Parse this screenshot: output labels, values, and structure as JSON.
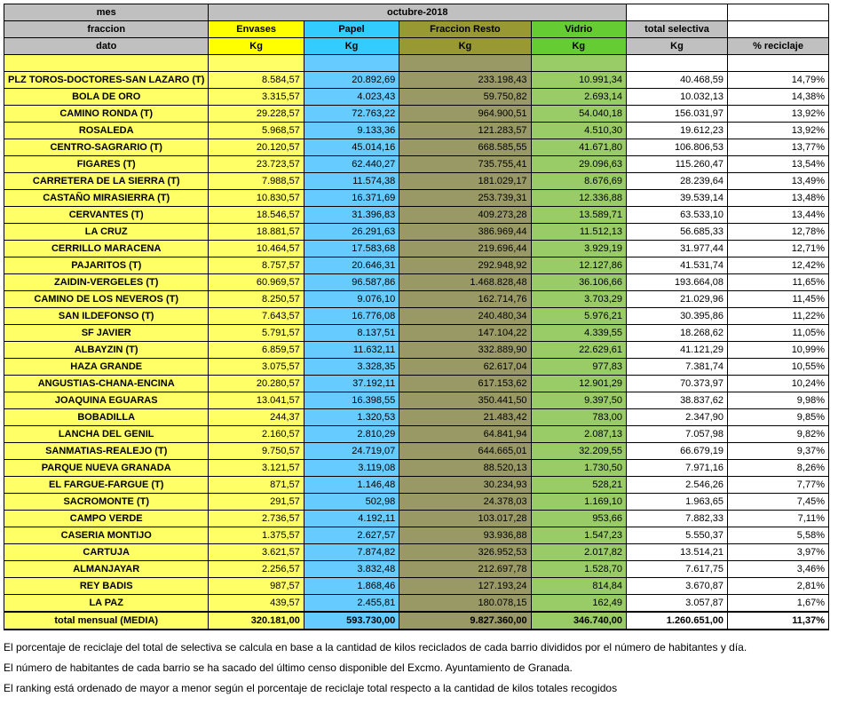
{
  "headers": {
    "mes": "mes",
    "period": "octubre-2018",
    "fraccion": "fraccion",
    "c1": "Envases",
    "c2": "Papel",
    "c3": "Fraccion Resto",
    "c4": "Vidrio",
    "c5": "total selectiva",
    "dato": "dato",
    "kg": "Kg",
    "pct": "% reciclaje"
  },
  "rows": [
    {
      "n": "PLZ TOROS-DOCTORES-SAN LAZARO (T)",
      "e": "8.584,57",
      "p": "20.892,69",
      "r": "233.198,43",
      "v": "10.991,34",
      "t": "40.468,59",
      "pc": "14,79%"
    },
    {
      "n": "BOLA DE ORO",
      "e": "3.315,57",
      "p": "4.023,43",
      "r": "59.750,82",
      "v": "2.693,14",
      "t": "10.032,13",
      "pc": "14,38%"
    },
    {
      "n": "CAMINO RONDA (T)",
      "e": "29.228,57",
      "p": "72.763,22",
      "r": "964.900,51",
      "v": "54.040,18",
      "t": "156.031,97",
      "pc": "13,92%"
    },
    {
      "n": "ROSALEDA",
      "e": "5.968,57",
      "p": "9.133,36",
      "r": "121.283,57",
      "v": "4.510,30",
      "t": "19.612,23",
      "pc": "13,92%"
    },
    {
      "n": "CENTRO-SAGRARIO (T)",
      "e": "20.120,57",
      "p": "45.014,16",
      "r": "668.585,55",
      "v": "41.671,80",
      "t": "106.806,53",
      "pc": "13,77%"
    },
    {
      "n": "FIGARES (T)",
      "e": "23.723,57",
      "p": "62.440,27",
      "r": "735.755,41",
      "v": "29.096,63",
      "t": "115.260,47",
      "pc": "13,54%"
    },
    {
      "n": "CARRETERA DE LA SIERRA (T)",
      "e": "7.988,57",
      "p": "11.574,38",
      "r": "181.029,17",
      "v": "8.676,69",
      "t": "28.239,64",
      "pc": "13,49%"
    },
    {
      "n": "CASTAÑO MIRASIERRA (T)",
      "e": "10.830,57",
      "p": "16.371,69",
      "r": "253.739,31",
      "v": "12.336,88",
      "t": "39.539,14",
      "pc": "13,48%"
    },
    {
      "n": "CERVANTES (T)",
      "e": "18.546,57",
      "p": "31.396,83",
      "r": "409.273,28",
      "v": "13.589,71",
      "t": "63.533,10",
      "pc": "13,44%"
    },
    {
      "n": "LA CRUZ",
      "e": "18.881,57",
      "p": "26.291,63",
      "r": "386.969,44",
      "v": "11.512,13",
      "t": "56.685,33",
      "pc": "12,78%"
    },
    {
      "n": "CERRILLO MARACENA",
      "e": "10.464,57",
      "p": "17.583,68",
      "r": "219.696,44",
      "v": "3.929,19",
      "t": "31.977,44",
      "pc": "12,71%"
    },
    {
      "n": "PAJARITOS (T)",
      "e": "8.757,57",
      "p": "20.646,31",
      "r": "292.948,92",
      "v": "12.127,86",
      "t": "41.531,74",
      "pc": "12,42%"
    },
    {
      "n": "ZAIDIN-VERGELES (T)",
      "e": "60.969,57",
      "p": "96.587,86",
      "r": "1.468.828,48",
      "v": "36.106,66",
      "t": "193.664,08",
      "pc": "11,65%"
    },
    {
      "n": "CAMINO DE LOS NEVEROS (T)",
      "e": "8.250,57",
      "p": "9.076,10",
      "r": "162.714,76",
      "v": "3.703,29",
      "t": "21.029,96",
      "pc": "11,45%"
    },
    {
      "n": "SAN ILDEFONSO (T)",
      "e": "7.643,57",
      "p": "16.776,08",
      "r": "240.480,34",
      "v": "5.976,21",
      "t": "30.395,86",
      "pc": "11,22%"
    },
    {
      "n": "SF JAVIER",
      "e": "5.791,57",
      "p": "8.137,51",
      "r": "147.104,22",
      "v": "4.339,55",
      "t": "18.268,62",
      "pc": "11,05%"
    },
    {
      "n": "ALBAYZIN (T)",
      "e": "6.859,57",
      "p": "11.632,11",
      "r": "332.889,90",
      "v": "22.629,61",
      "t": "41.121,29",
      "pc": "10,99%"
    },
    {
      "n": "HAZA GRANDE",
      "e": "3.075,57",
      "p": "3.328,35",
      "r": "62.617,04",
      "v": "977,83",
      "t": "7.381,74",
      "pc": "10,55%"
    },
    {
      "n": "ANGUSTIAS-CHANA-ENCINA",
      "e": "20.280,57",
      "p": "37.192,11",
      "r": "617.153,62",
      "v": "12.901,29",
      "t": "70.373,97",
      "pc": "10,24%"
    },
    {
      "n": "JOAQUINA EGUARAS",
      "e": "13.041,57",
      "p": "16.398,55",
      "r": "350.441,50",
      "v": "9.397,50",
      "t": "38.837,62",
      "pc": "9,98%"
    },
    {
      "n": "BOBADILLA",
      "e": "244,37",
      "p": "1.320,53",
      "r": "21.483,42",
      "v": "783,00",
      "t": "2.347,90",
      "pc": "9,85%"
    },
    {
      "n": "LANCHA DEL GENIL",
      "e": "2.160,57",
      "p": "2.810,29",
      "r": "64.841,94",
      "v": "2.087,13",
      "t": "7.057,98",
      "pc": "9,82%"
    },
    {
      "n": "SANMATIAS-REALEJO (T)",
      "e": "9.750,57",
      "p": "24.719,07",
      "r": "644.665,01",
      "v": "32.209,55",
      "t": "66.679,19",
      "pc": "9,37%"
    },
    {
      "n": "PARQUE NUEVA GRANADA",
      "e": "3.121,57",
      "p": "3.119,08",
      "r": "88.520,13",
      "v": "1.730,50",
      "t": "7.971,16",
      "pc": "8,26%"
    },
    {
      "n": "EL FARGUE-FARGUE (T)",
      "e": "871,57",
      "p": "1.146,48",
      "r": "30.234,93",
      "v": "528,21",
      "t": "2.546,26",
      "pc": "7,77%"
    },
    {
      "n": "SACROMONTE (T)",
      "e": "291,57",
      "p": "502,98",
      "r": "24.378,03",
      "v": "1.169,10",
      "t": "1.963,65",
      "pc": "7,45%"
    },
    {
      "n": "CAMPO VERDE",
      "e": "2.736,57",
      "p": "4.192,11",
      "r": "103.017,28",
      "v": "953,66",
      "t": "7.882,33",
      "pc": "7,11%"
    },
    {
      "n": "CASERIA MONTIJO",
      "e": "1.375,57",
      "p": "2.627,57",
      "r": "93.936,88",
      "v": "1.547,23",
      "t": "5.550,37",
      "pc": "5,58%"
    },
    {
      "n": "CARTUJA",
      "e": "3.621,57",
      "p": "7.874,82",
      "r": "326.952,53",
      "v": "2.017,82",
      "t": "13.514,21",
      "pc": "3,97%"
    },
    {
      "n": "ALMANJAYAR",
      "e": "2.256,57",
      "p": "3.832,48",
      "r": "212.697,78",
      "v": "1.528,70",
      "t": "7.617,75",
      "pc": "3,46%"
    },
    {
      "n": "REY BADIS",
      "e": "987,57",
      "p": "1.868,46",
      "r": "127.193,24",
      "v": "814,84",
      "t": "3.670,87",
      "pc": "2,81%"
    },
    {
      "n": "LA PAZ",
      "e": "439,57",
      "p": "2.455,81",
      "r": "180.078,15",
      "v": "162,49",
      "t": "3.057,87",
      "pc": "1,67%"
    }
  ],
  "total": {
    "n": "total mensual (MEDIA)",
    "e": "320.181,00",
    "p": "593.730,00",
    "r": "9.827.360,00",
    "v": "346.740,00",
    "t": "1.260.651,00",
    "pc": "11,37%"
  },
  "notes": {
    "l1": "El porcentaje de reciclaje del total de selectiva se calcula en base a la cantidad de kilos reciclados de cada barrio divididos por el número de habitantes y día.",
    "l2": "El número de habitantes de cada barrio se ha sacado del último censo disponible del Excmo. Ayuntamiento de Granada.",
    "l3": "El ranking está ordenado de mayor a menor según el porcentaje de reciclaje total respecto a la cantidad de kilos totales recogidos"
  }
}
